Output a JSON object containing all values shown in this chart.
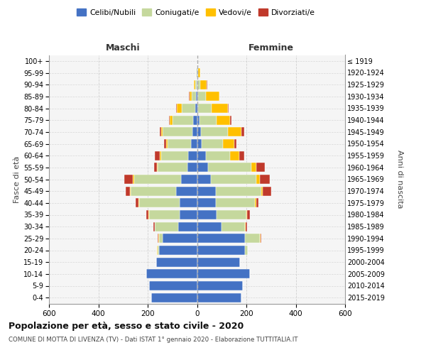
{
  "age_groups": [
    "0-4",
    "5-9",
    "10-14",
    "15-19",
    "20-24",
    "25-29",
    "30-34",
    "35-39",
    "40-44",
    "45-49",
    "50-54",
    "55-59",
    "60-64",
    "65-69",
    "70-74",
    "75-79",
    "80-84",
    "85-89",
    "90-94",
    "95-99",
    "100+"
  ],
  "birth_years": [
    "2015-2019",
    "2010-2014",
    "2005-2009",
    "2000-2004",
    "1995-1999",
    "1990-1994",
    "1985-1989",
    "1980-1984",
    "1975-1979",
    "1970-1974",
    "1965-1969",
    "1960-1964",
    "1955-1959",
    "1950-1954",
    "1945-1949",
    "1940-1944",
    "1935-1939",
    "1930-1934",
    "1925-1929",
    "1920-1924",
    "≤ 1919"
  ],
  "males": {
    "celibi": [
      185,
      195,
      205,
      165,
      155,
      140,
      75,
      70,
      70,
      85,
      65,
      40,
      35,
      25,
      20,
      15,
      8,
      5,
      2,
      1,
      0
    ],
    "coniugati": [
      0,
      0,
      0,
      0,
      5,
      15,
      95,
      125,
      165,
      185,
      190,
      120,
      110,
      95,
      120,
      85,
      55,
      18,
      5,
      2,
      0
    ],
    "vedovi": [
      0,
      0,
      0,
      0,
      2,
      2,
      2,
      2,
      3,
      3,
      5,
      3,
      5,
      5,
      5,
      10,
      20,
      8,
      5,
      2,
      0
    ],
    "divorziati": [
      0,
      0,
      0,
      0,
      0,
      2,
      5,
      10,
      10,
      15,
      35,
      10,
      20,
      10,
      5,
      3,
      2,
      2,
      2,
      0,
      0
    ]
  },
  "females": {
    "nubili": [
      180,
      185,
      215,
      175,
      195,
      195,
      100,
      80,
      75,
      75,
      55,
      45,
      35,
      20,
      15,
      10,
      5,
      5,
      2,
      1,
      0
    ],
    "coniugate": [
      0,
      0,
      0,
      0,
      10,
      60,
      95,
      120,
      160,
      185,
      185,
      175,
      100,
      85,
      110,
      70,
      55,
      30,
      12,
      3,
      0
    ],
    "vedove": [
      0,
      0,
      0,
      0,
      2,
      2,
      3,
      3,
      5,
      5,
      15,
      20,
      35,
      45,
      55,
      55,
      65,
      55,
      25,
      8,
      1
    ],
    "divorziate": [
      0,
      0,
      0,
      0,
      0,
      2,
      5,
      10,
      10,
      35,
      40,
      35,
      20,
      10,
      10,
      5,
      3,
      2,
      2,
      1,
      0
    ]
  },
  "colors": {
    "celibi": "#4472c4",
    "coniugati": "#c5d89d",
    "vedovi": "#ffc000",
    "divorziati": "#c0392b"
  },
  "legend_labels": [
    "Celibi/Nubili",
    "Coniugati/e",
    "Vedovi/e",
    "Divorziati/e"
  ],
  "title": "Popolazione per età, sesso e stato civile - 2020",
  "subtitle": "COMUNE DI MOTTA DI LIVENZA (TV) - Dati ISTAT 1° gennaio 2020 - Elaborazione TUTTITALIA.IT",
  "xlabel_left": "Maschi",
  "xlabel_right": "Femmine",
  "ylabel_left": "Fasce di età",
  "ylabel_right": "Anni di nascita",
  "xlim": 600,
  "bg_color": "#f5f5f5",
  "grid_color": "#cccccc"
}
